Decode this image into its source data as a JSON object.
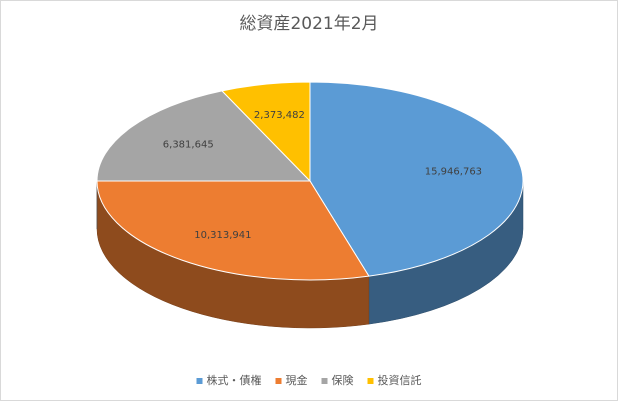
{
  "chart_data": {
    "type": "pie3d",
    "title": "総資産2021年2月",
    "categories": [
      "株式・債権",
      "現金",
      "保険",
      "投資信託"
    ],
    "values": [
      15946763,
      10313941,
      6381645,
      2373482
    ],
    "value_labels": [
      "15,946,763",
      "10,313,941",
      "6,381,645",
      "2,373,482"
    ],
    "colors": [
      "#5b9bd5",
      "#ed7d31",
      "#a5a5a5",
      "#ffc000"
    ],
    "legend": "bottom"
  }
}
